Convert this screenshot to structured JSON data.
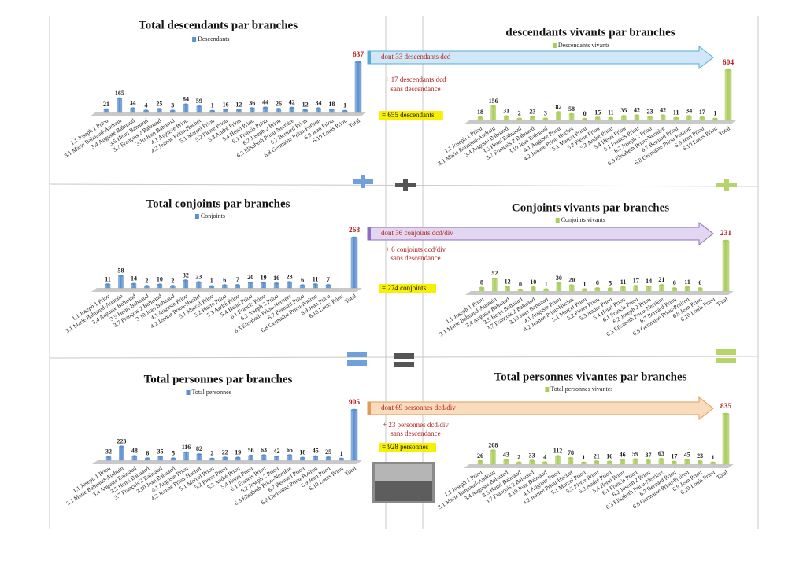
{
  "chart_data": [
    {
      "type": "bar",
      "title": "Total descendants par branches",
      "categories": [
        "1.1 Joseph 1 Priou",
        "3.1 Marie Bahuaud-Audrain",
        "3.4 Auguste Bahuaud",
        "3.5 Henri Bahuaud",
        "3.7 François 2 Bahuaud",
        "3.10 Jean Bahuaud",
        "4.1 Auguste Priou",
        "4.2 Jeanne Priou-Huchet",
        "5.1 Marcel Priou",
        "5.2 Pierre Priou",
        "5.3 André Priou",
        "5.4 Henri Priou",
        "6.1 Francis Priou",
        "6.2 Joseph 2 Priou",
        "6.3 Elisabeth Priou-Nerrière",
        "6.7 Bernard Priou",
        "6.8 Germaine Priou-Potiron",
        "6.9 Jean Priou",
        "6.10 Louis Priou",
        "Total"
      ],
      "series": [
        {
          "name": "Descendants",
          "color": "#5b8fd0",
          "values": [
            21,
            165,
            34,
            4,
            25,
            3,
            84,
            59,
            1,
            16,
            12,
            36,
            44,
            26,
            42,
            12,
            34,
            18,
            1,
            637
          ]
        }
      ]
    },
    {
      "type": "bar",
      "title": "descendants vivants par branches",
      "categories": [
        "1.1 Joseph 1 Priou",
        "3.1 Marie Bahuaud-Audrain",
        "3.4 Auguste Bahuaud",
        "3.5 Henri Bahuaud",
        "3.7 François 2 Bahuaud",
        "3.10 Jean Bahuaud",
        "4.1 Auguste Priou",
        "4.2 Jeanne Priou-Huchet",
        "5.1 Marcel Priou",
        "5.2 Pierre Priou",
        "5.3 André Priou",
        "5.4 Henri Priou",
        "6.1 Francis Priou",
        "6.2 Joseph 2 Priou",
        "6.3 Elisabeth Priou-Nerrière",
        "6.7 Bernard Priou",
        "6.8 Germaine Priou-Potiron",
        "6.9 Jean Priou",
        "6.10 Louis Priou",
        "Total"
      ],
      "series": [
        {
          "name": "Descendants vivants",
          "color": "#a9cc5a",
          "values": [
            18,
            156,
            31,
            2,
            23,
            3,
            82,
            58,
            0,
            15,
            11,
            35,
            42,
            23,
            42,
            11,
            34,
            17,
            1,
            604
          ]
        }
      ]
    },
    {
      "type": "bar",
      "title": "Total conjoints par branches",
      "categories": [
        "1.1 Joseph 1 Priou",
        "3.1 Marie Bahuaud-Audrain",
        "3.4 Auguste Bahuaud",
        "3.5 Henri Bahuaud",
        "3.7 François 2 Bahuaud",
        "3.10 Jean Bahuaud",
        "4.1 Auguste Priou",
        "4.2 Jeanne Priou-Huchet",
        "5.1 Marcel Priou",
        "5.2 Pierre Priou",
        "5.3 André Priou",
        "5.4 Henri Priou",
        "6.1 Francis Priou",
        "6.2 Joseph 2 Priou",
        "6.3 Elisabeth Priou-Nerrière",
        "6.7 Bernard Priou",
        "6.8 Germaine Priou-Potiron",
        "6.9 Jean Priou",
        "6.10 Louis Priou",
        "Total"
      ],
      "series": [
        {
          "name": "Conjoints",
          "color": "#5b8fd0",
          "values": [
            11,
            58,
            14,
            2,
            10,
            2,
            32,
            23,
            1,
            6,
            7,
            20,
            19,
            16,
            23,
            6,
            11,
            7,
            null,
            268
          ]
        }
      ]
    },
    {
      "type": "bar",
      "title": "Conjoints vivants par branches",
      "categories": [
        "1.1 Joseph 1 Priou",
        "3.1 Marie Bahuaud-Audrain",
        "3.4 Auguste Bahuaud",
        "3.5 Henri Bahuaud",
        "3.7 François 2 Bahuaud",
        "3.10 Jean Bahuaud",
        "4.1 Auguste Priou",
        "4.2 Jeanne Priou-Huchet",
        "5.1 Marcel Priou",
        "5.2 Pierre Priou",
        "5.3 André Priou",
        "5.4 Henri Priou",
        "6.1 Francis Priou",
        "6.2 Joseph 2 Priou",
        "6.3 Elisabeth Priou-Nerrière",
        "6.7 Bernard Priou",
        "6.8 Germaine Priou-Potiron",
        "6.9 Jean Priou",
        "6.10 Louis Priou",
        "Total"
      ],
      "series": [
        {
          "name": "Conjoints vivants",
          "color": "#a9cc5a",
          "values": [
            8,
            52,
            12,
            0,
            10,
            1,
            30,
            20,
            1,
            6,
            5,
            11,
            17,
            14,
            21,
            6,
            11,
            6,
            null,
            231
          ]
        }
      ]
    },
    {
      "type": "bar",
      "title": "Total personnes par branches",
      "categories": [
        "1.1 Joseph 1 Priou",
        "3.1 Marie Bahuaud-Audrain",
        "3.4 Auguste Bahuaud",
        "3.5 Henri Bahuaud",
        "3.7 François 2 Bahuaud",
        "3.10 Jean Bahuaud",
        "4.1 Auguste Priou",
        "4.2 Jeanne Priou-Huchet",
        "5.1 Marcel Priou",
        "5.2 Pierre Priou",
        "5.3 André Priou",
        "5.4 Henri Priou",
        "6.1 Francis Priou",
        "6.2 Joseph 2 Priou",
        "6.3 Elisabeth Priou-Nerrière",
        "6.7 Bernard Priou",
        "6.8 Germaine Priou-Potiron",
        "6.9 Jean Priou",
        "6.10 Louis Priou",
        "Total"
      ],
      "series": [
        {
          "name": "Total personnes",
          "color": "#5b8fd0",
          "values": [
            32,
            223,
            48,
            6,
            35,
            5,
            116,
            82,
            2,
            22,
            19,
            56,
            63,
            42,
            65,
            18,
            45,
            25,
            1,
            905
          ]
        }
      ]
    },
    {
      "type": "bar",
      "title": "Total personnes vivantes par branches",
      "categories": [
        "1.1 Joseph 1 Priou",
        "3.1 Marie Bahuaud-Audrain",
        "3.4 Auguste Bahuaud",
        "3.5 Henri Bahuaud",
        "3.7 François 2 Bahuaud",
        "3.10 Jean Bahuaud",
        "4.1 Auguste Priou",
        "4.2 Jeanne Priou-Huchet",
        "5.1 Marcel Priou",
        "5.2 Pierre Priou",
        "5.3 André Priou",
        "5.4 Henri Priou",
        "6.1 Francis Priou",
        "6.2 Joseph 2 Priou",
        "6.3 Elisabeth Priou-Nerrière",
        "6.7 Bernard Priou",
        "6.8 Germaine Priou-Potiron",
        "6.9 Jean Priou",
        "6.10 Louis Priou",
        "Total"
      ],
      "series": [
        {
          "name": "Total personnes vivantes",
          "color": "#a9cc5a",
          "values": [
            26,
            208,
            43,
            2,
            33,
            4,
            112,
            78,
            1,
            21,
            16,
            46,
            59,
            37,
            63,
            17,
            45,
            23,
            1,
            835
          ]
        }
      ]
    }
  ],
  "notes": [
    {
      "arrow": "dont 33 descendants dcd",
      "added": [
        "+ 17 descendants dcd",
        "sans descendance"
      ],
      "result": "= 655 descendants",
      "color": "#cfe7f6",
      "stroke": "#5aa9d6"
    },
    {
      "arrow": "dont 36 conjoints dcd/div",
      "added": [
        "+ 6 conjoints dcd/div",
        "sans descendance"
      ],
      "result": "= 274 conjoints",
      "color": "#e2d6f0",
      "stroke": "#8e6fbf"
    },
    {
      "arrow": "dont 69 personnes dcd/div",
      "added": [
        "+ 23 personnes dcd/div",
        "sans descendance"
      ],
      "result": "= 928 personnes",
      "color": "#f9dcbd",
      "stroke": "#e39a55"
    }
  ]
}
